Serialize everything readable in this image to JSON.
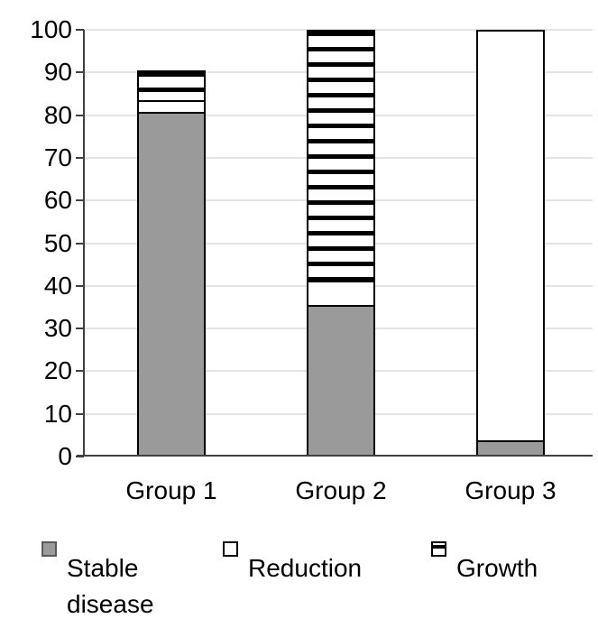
{
  "chart_data": {
    "type": "bar",
    "stacked": true,
    "categories": [
      "Group 1",
      "Group 2",
      "Group 3"
    ],
    "series": [
      {
        "name": "Stable disease",
        "values": [
          81,
          35.3,
          3.4
        ],
        "fill": "#9a9a9a",
        "pattern": "solid"
      },
      {
        "name": "Reduction",
        "values": [
          2.8,
          5.9,
          96.6
        ],
        "fill": "#ffffff",
        "pattern": "solid"
      },
      {
        "name": "Growth",
        "values": [
          6.7,
          58.8,
          0
        ],
        "fill": "#ffffff",
        "pattern": "horizontal-black-stripes"
      }
    ],
    "ylim": [
      0,
      100
    ],
    "yticks": [
      0,
      10,
      20,
      30,
      40,
      50,
      60,
      70,
      80,
      90,
      100
    ],
    "grid": "horizontal-light-gray",
    "legend_position": "bottom",
    "bar_totals": [
      90.5,
      100,
      100
    ]
  },
  "colors": {
    "stable_fill": "#9a9a9a",
    "bar_border": "#000000",
    "stripe": "#000000",
    "gridline": "#e3e3e3",
    "axis": "#404040",
    "text": "#000000"
  }
}
